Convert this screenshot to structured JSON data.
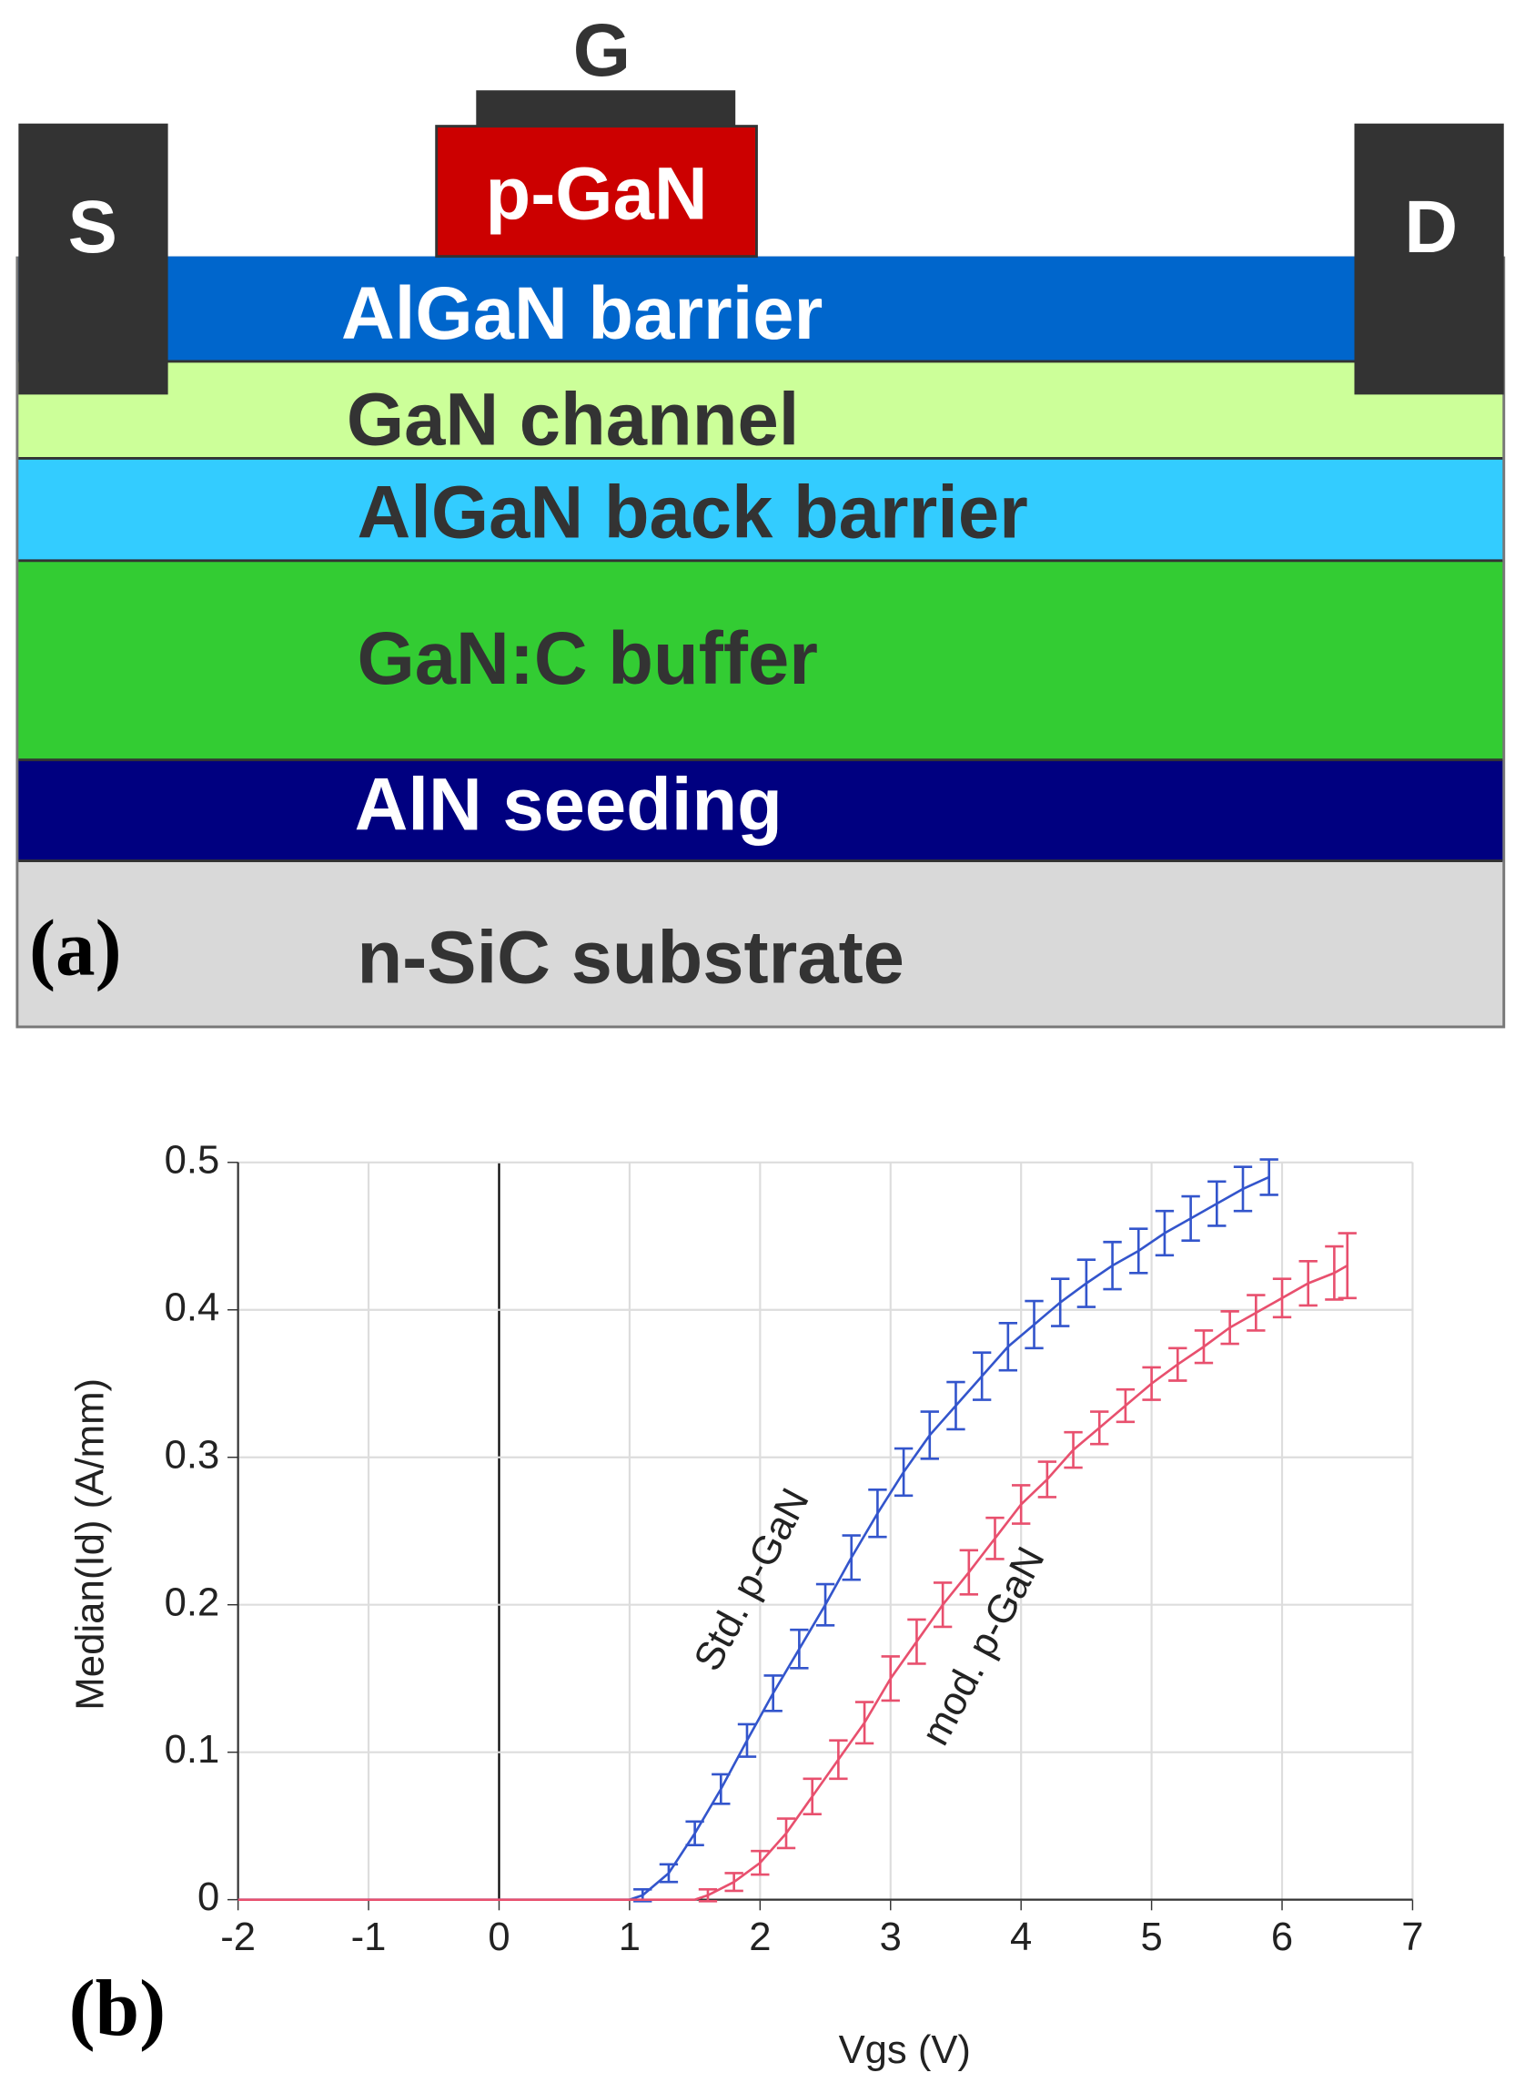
{
  "diagram": {
    "gate": "G",
    "source": "S",
    "drain": "D",
    "p_gan": "p-GaN",
    "layers": [
      "AlGaN barrier",
      "GaN channel",
      "AlGaN back barrier",
      "GaN:C buffer",
      "AlN seeding",
      "n-SiC substrate"
    ],
    "panel_a": "(a)",
    "panel_b": "(b)"
  },
  "chart_data": {
    "type": "line",
    "x_label": "Vgs (V)",
    "y_label": "Median(Id) (A/mm)",
    "xlim": [
      -2,
      7
    ],
    "xticks": [
      -2,
      -1,
      0,
      1,
      2,
      3,
      4,
      5,
      6,
      7
    ],
    "ylim": [
      0,
      0.5
    ],
    "yticks": [
      0,
      0.1,
      0.2,
      0.3,
      0.4,
      0.5
    ],
    "grid": true,
    "series": [
      {
        "name": "Std. p-GaN",
        "color": "#3355cc",
        "x": [
          -2,
          1.0,
          1.1,
          1.3,
          1.5,
          1.7,
          1.9,
          2.1,
          2.3,
          2.5,
          2.7,
          2.9,
          3.1,
          3.3,
          3.5,
          3.7,
          3.9,
          4.1,
          4.3,
          4.5,
          4.7,
          4.9,
          5.1,
          5.3,
          5.5,
          5.7,
          5.9
        ],
        "values": [
          0,
          0,
          0.003,
          0.018,
          0.045,
          0.075,
          0.108,
          0.14,
          0.17,
          0.2,
          0.232,
          0.262,
          0.29,
          0.315,
          0.335,
          0.355,
          0.375,
          0.39,
          0.405,
          0.418,
          0.43,
          0.44,
          0.452,
          0.462,
          0.472,
          0.482,
          0.49
        ],
        "errors": [
          null,
          null,
          0.004,
          0.006,
          0.008,
          0.01,
          0.011,
          0.012,
          0.013,
          0.014,
          0.015,
          0.016,
          0.016,
          0.016,
          0.016,
          0.016,
          0.016,
          0.016,
          0.016,
          0.016,
          0.016,
          0.015,
          0.015,
          0.015,
          0.015,
          0.015,
          0.012
        ]
      },
      {
        "name": "mod. p-GaN",
        "color": "#e8506e",
        "x": [
          -2,
          1.5,
          1.6,
          1.8,
          2.0,
          2.2,
          2.4,
          2.6,
          2.8,
          3.0,
          3.2,
          3.4,
          3.6,
          3.8,
          4.0,
          4.2,
          4.4,
          4.6,
          4.8,
          5.0,
          5.2,
          5.4,
          5.6,
          5.8,
          6.0,
          6.2,
          6.4,
          6.5
        ],
        "values": [
          0,
          0,
          0.003,
          0.012,
          0.025,
          0.045,
          0.07,
          0.095,
          0.12,
          0.15,
          0.175,
          0.2,
          0.222,
          0.245,
          0.268,
          0.285,
          0.305,
          0.32,
          0.335,
          0.35,
          0.363,
          0.375,
          0.388,
          0.398,
          0.408,
          0.418,
          0.425,
          0.43
        ],
        "errors": [
          null,
          null,
          0.004,
          0.006,
          0.008,
          0.01,
          0.012,
          0.013,
          0.014,
          0.015,
          0.015,
          0.015,
          0.015,
          0.014,
          0.013,
          0.012,
          0.012,
          0.011,
          0.011,
          0.011,
          0.011,
          0.011,
          0.011,
          0.012,
          0.013,
          0.015,
          0.018,
          0.022
        ]
      }
    ]
  }
}
